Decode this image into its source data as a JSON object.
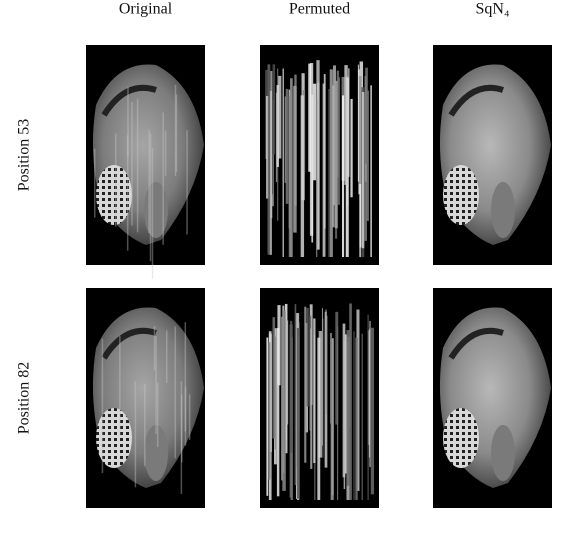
{
  "figure": {
    "columns": [
      "Original",
      "Permuted",
      "SqN₄"
    ],
    "rows": [
      "Position 53",
      "Position 82"
    ]
  }
}
